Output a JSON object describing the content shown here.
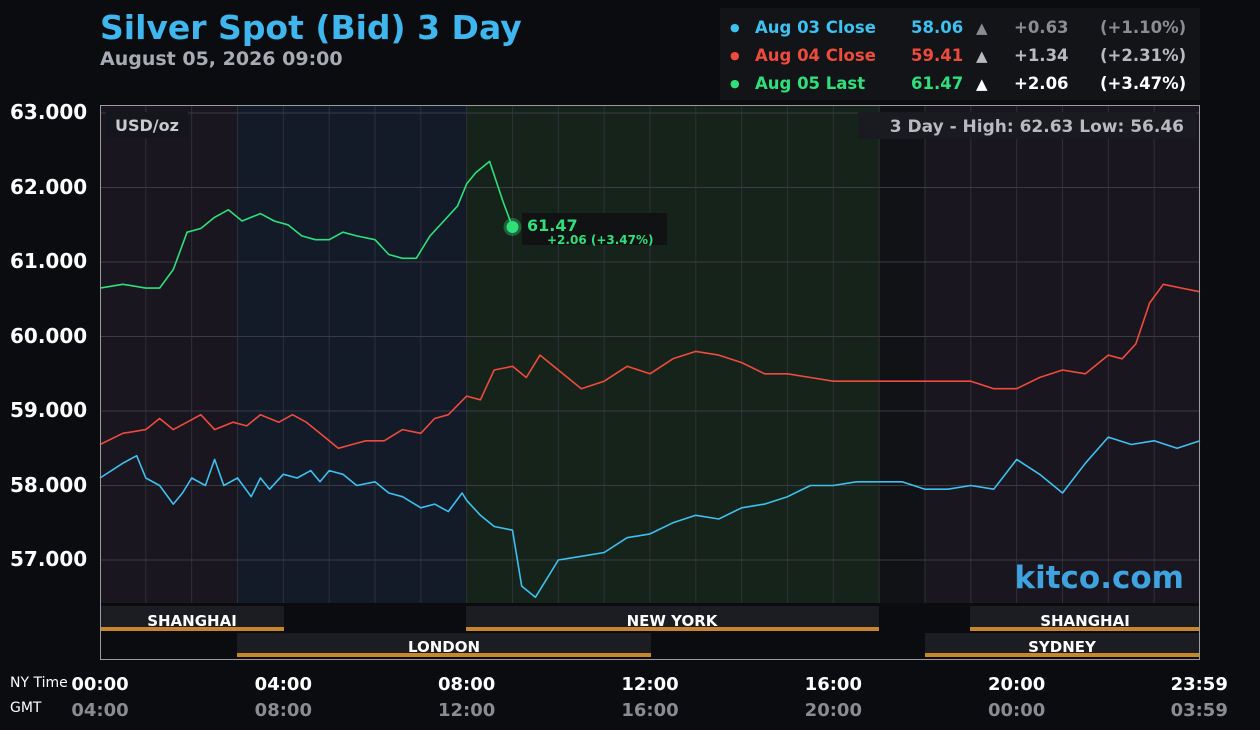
{
  "title": "Silver Spot (Bid) 3 Day",
  "subtitle": "August 05, 2026 09:00",
  "legend": [
    {
      "name": "Aug 03 Close",
      "value": "58.06",
      "arrow": "▲",
      "change": "+0.63",
      "pct": "(+1.10%)",
      "color": "#3ec0f0",
      "tail": "#8a8c92"
    },
    {
      "name": "Aug 04 Close",
      "value": "59.41",
      "arrow": "▲",
      "change": "+1.34",
      "pct": "(+2.31%)",
      "color": "#ee4b3c",
      "tail": "#b8bac0"
    },
    {
      "name": "Aug 05 Last",
      "value": "61.47",
      "arrow": "▲",
      "change": "+2.06",
      "pct": "(+3.47%)",
      "color": "#2fe07a",
      "tail": "#ffffff"
    }
  ],
  "units": "USD/oz",
  "hilo": "3 Day - High: 62.63  Low: 56.46",
  "watermark": "kitco.com",
  "last_marker": {
    "value": "61.47",
    "change": "+2.06 (+3.47%)"
  },
  "axis_row_labels": {
    "ny": "NY Time",
    "gmt": "GMT"
  },
  "sessions": {
    "shanghai": "SHANGHAI",
    "london": "LONDON",
    "newyork": "NEW YORK",
    "shanghai2": "SHANGHAI",
    "sydney": "SYDNEY"
  },
  "colors": {
    "aug03": "#3ec0f0",
    "aug04": "#ee4b3c",
    "aug05": "#2fe07a",
    "title": "#3fb6ee",
    "session_bar": "#c8862a"
  },
  "chart_data": {
    "type": "line",
    "title": "Silver Spot (Bid) 3 Day",
    "ylabel": "USD/oz",
    "ylim": [
      56.3,
      63.1
    ],
    "yticks": [
      "63.000",
      "62.000",
      "61.000",
      "60.000",
      "59.000",
      "58.000",
      "57.000"
    ],
    "xticks_ny": [
      "00:00",
      "04:00",
      "08:00",
      "12:00",
      "16:00",
      "20:00",
      "23:59"
    ],
    "xticks_gmt": [
      "04:00",
      "08:00",
      "12:00",
      "16:00",
      "20:00",
      "00:00",
      "03:59"
    ],
    "x_unit": "hours (NY time)",
    "grid": true,
    "series": [
      {
        "name": "Aug 03 Close",
        "x": [
          0,
          0.5,
          0.8,
          1,
          1.3,
          1.6,
          1.8,
          2,
          2.3,
          2.5,
          2.7,
          3,
          3.3,
          3.5,
          3.7,
          4,
          4.3,
          4.6,
          4.8,
          5,
          5.3,
          5.6,
          6,
          6.3,
          6.6,
          7,
          7.3,
          7.6,
          7.9,
          8,
          8.3,
          8.6,
          9,
          9.2,
          9.5,
          9.8,
          10,
          10.5,
          11,
          11.5,
          12,
          12.5,
          13,
          13.5,
          14,
          14.5,
          15,
          15.5,
          16,
          16.5,
          17,
          17.5,
          18,
          18.5,
          19,
          19.5,
          20,
          20.5,
          21,
          21.5,
          22,
          22.5,
          23,
          23.5,
          24
        ],
        "y": [
          58.1,
          58.3,
          58.4,
          58.1,
          58.0,
          57.75,
          57.9,
          58.1,
          58.0,
          58.35,
          58.0,
          58.1,
          57.85,
          58.1,
          57.95,
          58.15,
          58.1,
          58.2,
          58.05,
          58.2,
          58.15,
          58.0,
          58.05,
          57.9,
          57.85,
          57.7,
          57.75,
          57.65,
          57.9,
          57.8,
          57.6,
          57.45,
          57.4,
          56.65,
          56.5,
          56.8,
          57.0,
          57.05,
          57.1,
          57.3,
          57.35,
          57.5,
          57.6,
          57.55,
          57.7,
          57.75,
          57.85,
          58.0,
          58.0,
          58.05,
          58.05,
          58.05,
          57.95,
          57.95,
          58.0,
          57.95,
          58.35,
          58.15,
          57.9,
          58.3,
          58.65,
          58.55,
          58.6,
          58.5,
          58.6
        ]
      },
      {
        "name": "Aug 04 Close",
        "x": [
          0,
          0.5,
          1,
          1.3,
          1.6,
          1.9,
          2.2,
          2.5,
          2.9,
          3.2,
          3.5,
          3.9,
          4.2,
          4.5,
          4.8,
          5.2,
          5.5,
          5.8,
          6.2,
          6.6,
          7,
          7.3,
          7.6,
          8,
          8.3,
          8.6,
          9,
          9.3,
          9.6,
          10,
          10.5,
          11,
          11.5,
          12,
          12.5,
          13,
          13.5,
          14,
          14.5,
          15,
          15.5,
          16,
          16.5,
          17,
          17.5,
          18,
          18.5,
          19,
          19.5,
          20,
          20.5,
          21,
          21.5,
          22,
          22.3,
          22.6,
          22.9,
          23.2,
          23.6,
          24
        ],
        "y": [
          58.55,
          58.7,
          58.75,
          58.9,
          58.75,
          58.85,
          58.95,
          58.75,
          58.85,
          58.8,
          58.95,
          58.85,
          58.95,
          58.85,
          58.7,
          58.5,
          58.55,
          58.6,
          58.6,
          58.75,
          58.7,
          58.9,
          58.95,
          59.2,
          59.15,
          59.55,
          59.6,
          59.45,
          59.75,
          59.55,
          59.3,
          59.4,
          59.6,
          59.5,
          59.7,
          59.8,
          59.75,
          59.65,
          59.5,
          59.5,
          59.45,
          59.4,
          59.4,
          59.4,
          59.4,
          59.4,
          59.4,
          59.4,
          59.3,
          59.3,
          59.45,
          59.55,
          59.5,
          59.75,
          59.7,
          59.9,
          60.45,
          60.7,
          60.65,
          60.6
        ]
      },
      {
        "name": "Aug 05 Last",
        "x": [
          0,
          0.5,
          1,
          1.3,
          1.6,
          1.9,
          2.2,
          2.5,
          2.8,
          3.1,
          3.5,
          3.8,
          4.1,
          4.4,
          4.7,
          5,
          5.3,
          5.6,
          6,
          6.3,
          6.6,
          6.9,
          7.2,
          7.5,
          7.8,
          8,
          8.2,
          8.5,
          8.8,
          9
        ],
        "y": [
          60.65,
          60.7,
          60.65,
          60.65,
          60.9,
          61.4,
          61.45,
          61.6,
          61.7,
          61.55,
          61.65,
          61.55,
          61.5,
          61.35,
          61.3,
          61.3,
          61.4,
          61.35,
          61.3,
          61.1,
          61.05,
          61.05,
          61.35,
          61.55,
          61.75,
          62.05,
          62.2,
          62.35,
          61.8,
          61.47
        ]
      }
    ]
  }
}
